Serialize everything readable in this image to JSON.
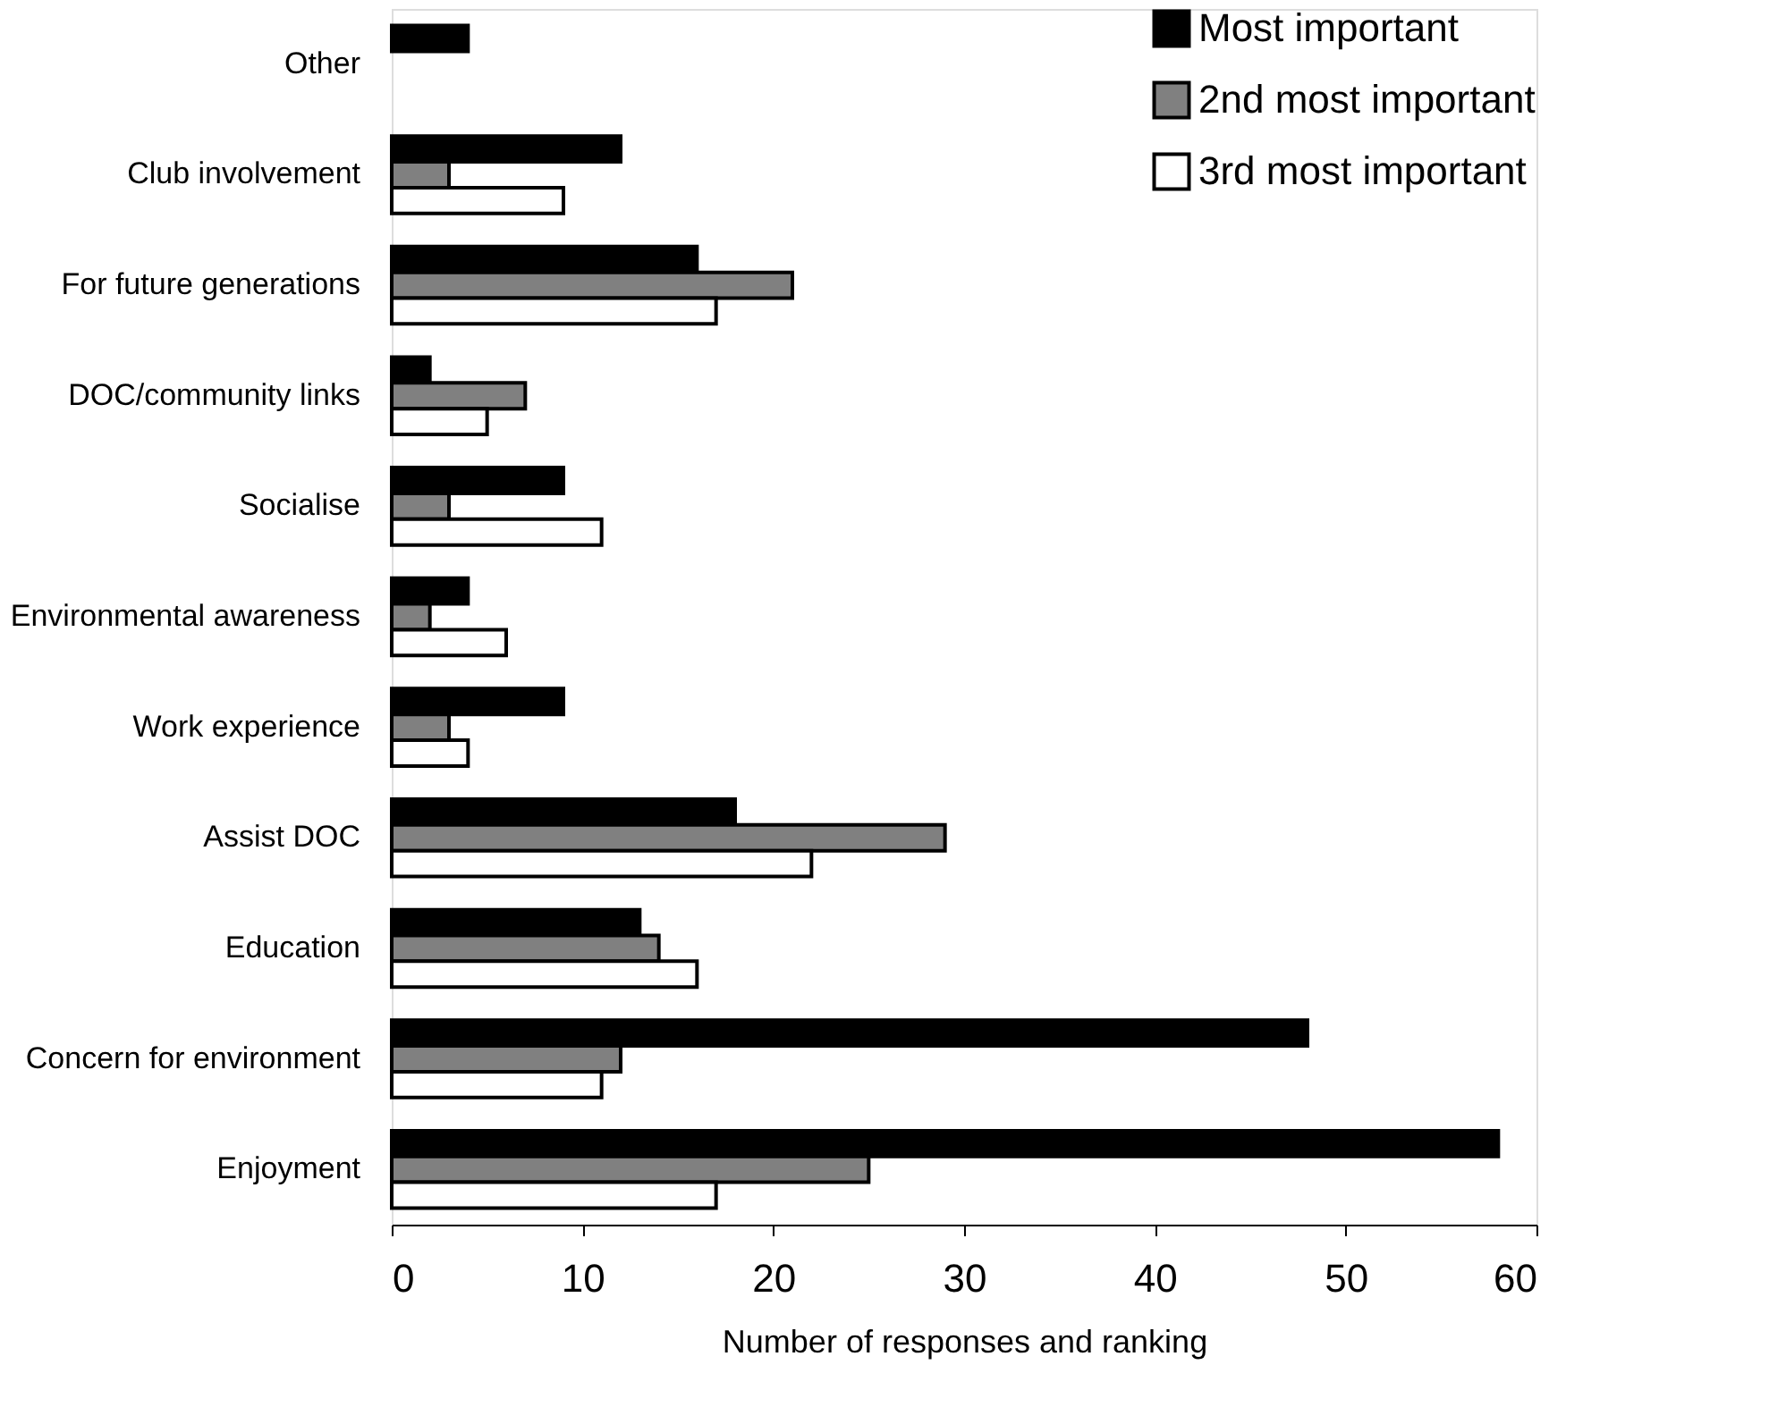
{
  "chart_data": {
    "type": "bar",
    "orientation": "horizontal",
    "xlabel": "Number of responses and ranking",
    "categories": [
      "Other",
      "Club involvement",
      "For future generations",
      "DOC/community links",
      "Socialise",
      "Environmental awareness",
      "Work experience",
      "Assist DOC",
      "Education",
      "Concern for environment",
      "Enjoyment"
    ],
    "series": [
      {
        "name": "Most important",
        "color": "#000000",
        "values": [
          4,
          12,
          16,
          2,
          9,
          4,
          9,
          18,
          13,
          48,
          58
        ]
      },
      {
        "name": "2nd most important",
        "color": "#808080",
        "values": [
          null,
          3,
          21,
          7,
          3,
          2,
          3,
          29,
          14,
          12,
          25
        ]
      },
      {
        "name": "3rd most important",
        "color": "#ffffff",
        "values": [
          null,
          9,
          17,
          5,
          11,
          6,
          4,
          22,
          16,
          11,
          17
        ]
      }
    ],
    "xlim": [
      0,
      60
    ],
    "xticks": [
      0,
      10,
      20,
      30,
      40,
      50,
      60
    ],
    "grid": false,
    "legend": "top right"
  }
}
